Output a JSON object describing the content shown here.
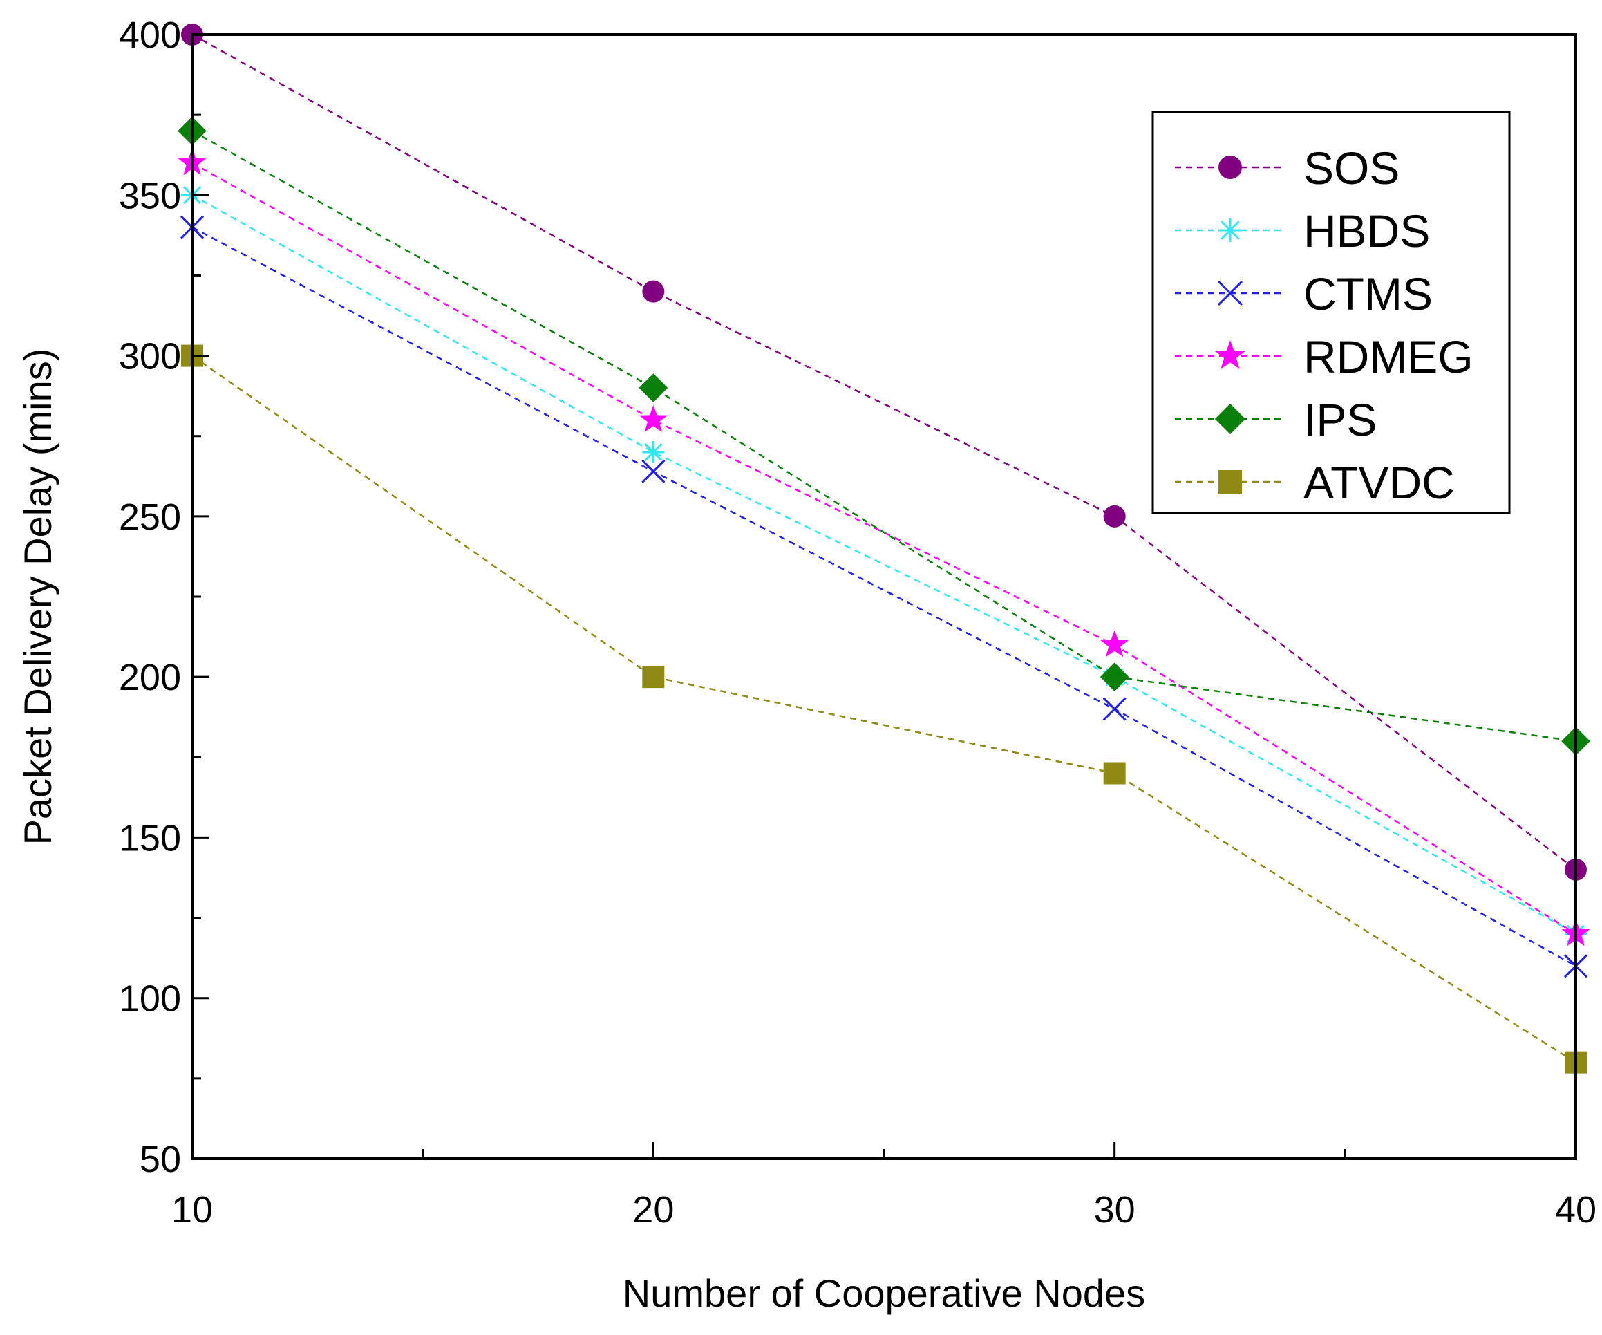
{
  "chart_data": {
    "type": "line",
    "title": "",
    "xlabel": "Number of Cooperative Nodes",
    "ylabel": "Packet Delivery Delay (mins)",
    "x": [
      10,
      20,
      30,
      40
    ],
    "xlim": [
      10,
      40
    ],
    "ylim": [
      50,
      400
    ],
    "xticks": [
      10,
      20,
      30,
      40
    ],
    "xminor": [
      15,
      25,
      35
    ],
    "yticks": [
      50,
      100,
      150,
      200,
      250,
      300,
      350,
      400
    ],
    "grid": false,
    "legend_position": "top-right",
    "series": [
      {
        "name": "SOS",
        "values": [
          400,
          320,
          250,
          140
        ],
        "color": "#800080",
        "marker": "circle"
      },
      {
        "name": "HBDS",
        "values": [
          350,
          270,
          200,
          120
        ],
        "color": "#33e6f0",
        "marker": "asterisk"
      },
      {
        "name": "CTMS",
        "values": [
          340,
          264,
          190,
          110
        ],
        "color": "#2020ee",
        "marker": "x"
      },
      {
        "name": "RDMEG",
        "values": [
          360,
          280,
          210,
          120
        ],
        "color": "#ff00ff",
        "marker": "star"
      },
      {
        "name": "IPS",
        "values": [
          370,
          290,
          200,
          180
        ],
        "color": "#0a800a",
        "marker": "diamond"
      },
      {
        "name": "ATVDC",
        "values": [
          300,
          200,
          170,
          80
        ],
        "color": "#8f8a14",
        "marker": "square"
      }
    ]
  }
}
